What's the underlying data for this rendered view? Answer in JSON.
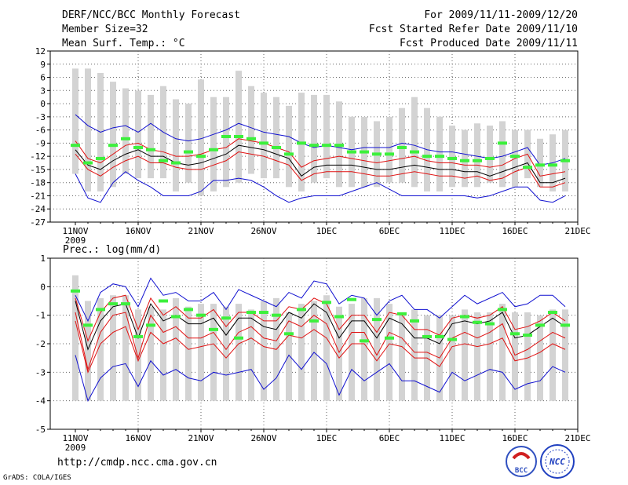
{
  "header": {
    "title": "DERF/NCC/BCC Monthly Forecast",
    "member_size": "Member Size=32",
    "variable": "Mean Surf. Temp.: °C",
    "forecast_period": "For 2009/11/11-2009/12/20",
    "started_refer": "Fcst Started Refer Date 2009/11/10",
    "produced": "Fcst Produced Date 2009/11/11"
  },
  "footer": {
    "url": "http://cmdp.ncc.cma.gov.cn",
    "grads": "GrADS: COLA/IGES",
    "logo_bcc": "BCC",
    "logo_ncc": "NCC"
  },
  "colors": {
    "bar": "#d3d3d3",
    "median": "#000000",
    "quartile": "#e01010",
    "envelope": "#1010d0",
    "marker": "#3cf03c",
    "grid": "#666666"
  },
  "chart_data": [
    {
      "type": "line",
      "title": "Mean Surf. Temp.: °C",
      "xlabel": "",
      "ylabel": "",
      "x_ticks": [
        "11NOV",
        "16NOV",
        "21NOV",
        "26NOV",
        "1DEC",
        "6DEC",
        "11DEC",
        "16DEC",
        "21DEC"
      ],
      "x_year": "2009",
      "ylim": [
        -27,
        12
      ],
      "y_ticks": [
        "12",
        "9",
        "6",
        "3",
        "0",
        "-3",
        "-6",
        "-9",
        "-12",
        "-15",
        "-18",
        "-21",
        "-24",
        "-27"
      ],
      "days": 40,
      "bar_top": [
        8,
        8,
        7,
        5,
        3.5,
        3,
        2,
        4,
        1,
        0,
        5.5,
        1.5,
        1.5,
        7.5,
        4,
        2.5,
        1.5,
        -0.5,
        2.5,
        2,
        2,
        0.5,
        -3,
        -3,
        -4,
        -3,
        -1,
        1.5,
        -1,
        -3,
        -5,
        -6,
        -4.5,
        -5,
        -4,
        -6,
        -6,
        -8,
        -7,
        -6
      ],
      "bar_bottom": [
        -16,
        -20,
        -20,
        -19,
        -16,
        -17,
        -17,
        -17,
        -20,
        -18,
        -21,
        -20,
        -19,
        -18,
        -16,
        -17,
        -17,
        -19,
        -20,
        -18,
        -17,
        -19,
        -19,
        -19,
        -19,
        -18,
        -18,
        -19,
        -20,
        -20,
        -19,
        -19,
        -19,
        -18,
        -19,
        -19,
        -17,
        -19,
        -20,
        -20
      ],
      "series": [
        {
          "name": "envelope-max",
          "values": [
            -2.5,
            -5,
            -6.5,
            -5.5,
            -5,
            -6.5,
            -4.5,
            -6.5,
            -8,
            -8.5,
            -8,
            -7,
            -6,
            -4.5,
            -5.5,
            -6.5,
            -7,
            -7.5,
            -9,
            -10,
            -9.5,
            -10,
            -10.5,
            -10,
            -10,
            -10,
            -9,
            -9.5,
            -10.5,
            -11,
            -11,
            -11.5,
            -12,
            -12.5,
            -12,
            -11,
            -10,
            -14,
            -13.5,
            -12.5
          ]
        },
        {
          "name": "quartile-upper",
          "values": [
            -8.5,
            -12.5,
            -13.5,
            -11.5,
            -9.5,
            -9,
            -10.5,
            -11,
            -12,
            -12,
            -11.5,
            -10.5,
            -10,
            -8,
            -8.5,
            -9,
            -10,
            -11,
            -14.5,
            -13,
            -12.5,
            -12,
            -12.5,
            -13,
            -13.5,
            -13,
            -12.5,
            -12,
            -13,
            -13.5,
            -13.5,
            -14,
            -14,
            -14.5,
            -14,
            -12.5,
            -11.5,
            -16.5,
            -16,
            -15.5
          ]
        },
        {
          "name": "median",
          "values": [
            -10.5,
            -14,
            -15,
            -13,
            -11.5,
            -10.5,
            -12,
            -12,
            -13.5,
            -14,
            -13.5,
            -12.5,
            -11.5,
            -9.5,
            -10,
            -10.5,
            -11.5,
            -12.5,
            -16.5,
            -14.5,
            -14,
            -14,
            -14,
            -14.5,
            -15,
            -15,
            -14.5,
            -14,
            -14.5,
            -15,
            -15,
            -15.5,
            -15.5,
            -16.5,
            -15.5,
            -14.5,
            -13.5,
            -18,
            -18,
            -17
          ]
        },
        {
          "name": "quartile-lower",
          "values": [
            -11.5,
            -15,
            -16.5,
            -14.5,
            -13,
            -12,
            -13.5,
            -13.5,
            -14.5,
            -15,
            -15,
            -14,
            -13,
            -11,
            -11.5,
            -12,
            -13,
            -14,
            -17.5,
            -16,
            -15.5,
            -15.5,
            -15.5,
            -16,
            -16.5,
            -16.5,
            -16,
            -15.5,
            -16,
            -16.5,
            -16.5,
            -17,
            -16.5,
            -17.5,
            -17,
            -15.5,
            -14.5,
            -19,
            -19,
            -18
          ]
        },
        {
          "name": "envelope-min",
          "values": [
            -16,
            -21.5,
            -22.5,
            -18,
            -15.5,
            -17.5,
            -19,
            -21,
            -21,
            -21,
            -20,
            -17.5,
            -17.5,
            -17,
            -17.5,
            -19,
            -21,
            -22.5,
            -21.5,
            -21,
            -21,
            -21,
            -20,
            -19,
            -18,
            -19.5,
            -21,
            -21,
            -21,
            -21,
            -21,
            -21,
            -21.5,
            -21,
            -20,
            -19,
            -19,
            -22,
            -22.5,
            -21
          ]
        }
      ],
      "markers": [
        -9.5,
        -13.5,
        -12.5,
        -9.5,
        -8,
        -10,
        -10.5,
        -13,
        -13.5,
        -11,
        -12,
        -10.5,
        -7.5,
        -7.5,
        -8,
        -9,
        -10,
        -11.5,
        -9,
        -9.5,
        -9.5,
        -9.5,
        -11,
        -11,
        -11.5,
        -11.5,
        -10,
        -11,
        -12,
        -12,
        -12.5,
        -13,
        -13,
        -12.5,
        -9,
        -12,
        -14.5,
        -14,
        -14,
        -13
      ]
    },
    {
      "type": "line",
      "title": "Prec.: log(mm/d)",
      "xlabel": "",
      "ylabel": "",
      "x_ticks": [
        "11NOV",
        "16NOV",
        "21NOV",
        "26NOV",
        "1DEC",
        "6DEC",
        "11DEC",
        "16DEC",
        "21DEC"
      ],
      "x_year": "2009",
      "ylim": [
        -5,
        1
      ],
      "y_ticks": [
        "1",
        "0",
        "-1",
        "-2",
        "-3",
        "-4",
        "-5"
      ],
      "days": 40,
      "bar_top": [
        0.4,
        -0.5,
        -0.4,
        -0.3,
        -0.3,
        -0.8,
        -0.7,
        -0.8,
        -0.4,
        -0.7,
        -0.6,
        -0.6,
        -0.7,
        -0.6,
        -0.8,
        -0.5,
        -0.4,
        -0.9,
        -0.6,
        -0.5,
        -0.3,
        -0.7,
        -0.6,
        -0.4,
        -0.4,
        -0.6,
        -0.9,
        -0.8,
        -1.0,
        -1.0,
        -1.0,
        -0.8,
        -0.9,
        -0.9,
        -0.6,
        -0.9,
        -0.9,
        -1.0,
        -0.8,
        -0.8
      ],
      "bar_bottom": [
        -4,
        -4,
        -4,
        -4,
        -4,
        -4,
        -4,
        -4,
        -4,
        -4,
        -4,
        -4,
        -4,
        -4,
        -4,
        -4,
        -4,
        -4,
        -4,
        -4,
        -4,
        -4,
        -4,
        -4,
        -4,
        -4,
        -4,
        -4,
        -4,
        -4,
        -4,
        -4,
        -4,
        -4,
        -4,
        -4,
        -4,
        -4,
        -4,
        -4
      ],
      "series": [
        {
          "name": "envelope-max",
          "values": [
            -0.3,
            -1.2,
            -0.2,
            0.1,
            0.0,
            -0.7,
            0.3,
            -0.3,
            -0.2,
            -0.5,
            -0.5,
            -0.2,
            -0.8,
            -0.1,
            -0.3,
            -0.5,
            -0.7,
            -0.2,
            -0.4,
            0.2,
            0.1,
            -0.6,
            -0.3,
            -0.4,
            -1.0,
            -0.5,
            -0.3,
            -0.8,
            -0.8,
            -1.1,
            -0.7,
            -0.3,
            -0.6,
            -0.4,
            -0.2,
            -0.7,
            -0.6,
            -0.3,
            -0.3,
            -0.7
          ]
        },
        {
          "name": "quartile-upper",
          "values": [
            -0.4,
            -1.9,
            -0.9,
            -0.4,
            -0.3,
            -1.5,
            -0.4,
            -1.0,
            -0.7,
            -1.1,
            -1.1,
            -0.8,
            -1.4,
            -0.9,
            -0.9,
            -1.2,
            -1.2,
            -0.7,
            -0.8,
            -0.4,
            -0.6,
            -1.5,
            -1.0,
            -1.0,
            -1.6,
            -0.9,
            -1.0,
            -1.5,
            -1.5,
            -1.7,
            -1.1,
            -1.0,
            -1.1,
            -1.0,
            -0.7,
            -1.5,
            -1.4,
            -1.2,
            -0.9,
            -1.2
          ]
        },
        {
          "name": "median",
          "values": [
            -0.5,
            -2.2,
            -1.2,
            -0.7,
            -0.6,
            -1.8,
            -0.6,
            -1.2,
            -1.0,
            -1.3,
            -1.3,
            -1.1,
            -1.7,
            -1.1,
            -1.1,
            -1.4,
            -1.5,
            -0.9,
            -1.1,
            -0.6,
            -0.9,
            -1.8,
            -1.2,
            -1.2,
            -1.8,
            -1.1,
            -1.3,
            -1.8,
            -1.8,
            -2.0,
            -1.3,
            -1.2,
            -1.3,
            -1.2,
            -0.9,
            -1.8,
            -1.7,
            -1.4,
            -1.1,
            -1.4
          ]
        },
        {
          "name": "quartile-lower",
          "values": [
            -0.9,
            -2.9,
            -1.6,
            -1.0,
            -0.9,
            -2.5,
            -1.0,
            -1.6,
            -1.4,
            -1.8,
            -1.8,
            -1.6,
            -2.2,
            -1.6,
            -1.4,
            -1.8,
            -1.9,
            -1.2,
            -1.4,
            -1.0,
            -1.3,
            -2.3,
            -1.6,
            -1.6,
            -2.4,
            -1.6,
            -1.8,
            -2.3,
            -2.3,
            -2.5,
            -1.8,
            -1.6,
            -1.8,
            -1.6,
            -1.3,
            -2.4,
            -2.2,
            -1.9,
            -1.6,
            -1.8
          ]
        },
        {
          "name": "quartile-lowest",
          "values": [
            -1.2,
            -3.0,
            -2.0,
            -1.6,
            -1.4,
            -2.6,
            -1.6,
            -2.0,
            -1.8,
            -2.2,
            -2.1,
            -2.0,
            -2.5,
            -2.0,
            -1.8,
            -2.1,
            -2.2,
            -1.7,
            -1.8,
            -1.5,
            -1.8,
            -2.5,
            -2.0,
            -2.0,
            -2.6,
            -2.0,
            -2.1,
            -2.5,
            -2.5,
            -2.8,
            -2.1,
            -2.0,
            -2.1,
            -2.0,
            -1.8,
            -2.6,
            -2.5,
            -2.3,
            -2.0,
            -2.2
          ]
        },
        {
          "name": "envelope-min",
          "values": [
            -2.4,
            -4.0,
            -3.2,
            -2.8,
            -2.7,
            -3.5,
            -2.6,
            -3.1,
            -2.9,
            -3.2,
            -3.3,
            -3.0,
            -3.1,
            -3.0,
            -2.9,
            -3.6,
            -3.2,
            -2.4,
            -2.9,
            -2.3,
            -2.7,
            -3.8,
            -2.9,
            -3.3,
            -3.0,
            -2.7,
            -3.3,
            -3.3,
            -3.5,
            -3.7,
            -3.0,
            -3.3,
            -3.1,
            -2.9,
            -3.0,
            -3.6,
            -3.4,
            -3.3,
            -2.8,
            -3.0
          ]
        }
      ],
      "markers": [
        -0.15,
        -1.35,
        -0.8,
        -0.6,
        -0.6,
        -1.75,
        -1.35,
        -0.5,
        -1.05,
        -0.8,
        -1.0,
        -1.5,
        -1.1,
        -1.8,
        -0.9,
        -0.9,
        -1.0,
        -1.65,
        -0.8,
        -1.2,
        -0.55,
        -1.05,
        -0.45,
        -1.9,
        -1.15,
        -1.8,
        -0.95,
        -1.2,
        -1.75,
        -1.75,
        -1.85,
        -1.05,
        -1.25,
        -1.3,
        -0.8,
        -1.65,
        -1.7,
        -1.35,
        -0.9,
        -1.35
      ]
    }
  ]
}
